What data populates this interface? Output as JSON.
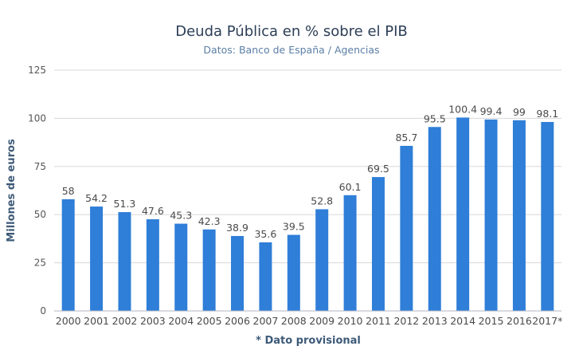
{
  "chart_data": {
    "type": "bar",
    "title": "Deuda Pública en % sobre el PIB",
    "subtitle": "Datos: Banco de España / Agencias",
    "xlabel": "* Dato provisional",
    "ylabel": "Millones de euros",
    "ylim": [
      0,
      125
    ],
    "yticks": [
      0,
      25,
      50,
      75,
      100,
      125
    ],
    "grid": true,
    "categories": [
      "2000",
      "2001",
      "2002",
      "2003",
      "2004",
      "2005",
      "2006",
      "2007",
      "2008",
      "2009",
      "2010",
      "2011",
      "2012",
      "2013",
      "2014",
      "2015",
      "2016",
      "2017*"
    ],
    "values": [
      58,
      54.2,
      51.3,
      47.6,
      45.3,
      42.3,
      38.9,
      35.6,
      39.5,
      52.8,
      60.1,
      69.5,
      85.7,
      95.5,
      100.4,
      99.4,
      99,
      98.1
    ],
    "data_labels": [
      "58",
      "54.2",
      "51.3",
      "47.6",
      "45.3",
      "42.3",
      "38.9",
      "35.6",
      "39.5",
      "52.8",
      "60.1",
      "69.5",
      "85.7",
      "95.5",
      "100.4",
      "99.4",
      "99",
      "98.1"
    ],
    "colors": {
      "bar": "#2f7ed8",
      "grid": "#d8d8d8",
      "axis": "#b0b7c3"
    }
  }
}
